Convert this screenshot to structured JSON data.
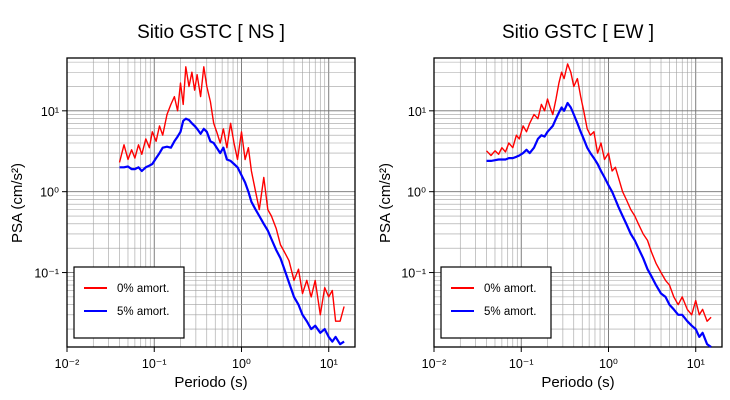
{
  "figure": {
    "panels": [
      {
        "title": "Sitio GSTC [ NS ]",
        "xlabel": "Periodo (s)",
        "ylabel": "PSA (cm/s²)",
        "legend": [
          "0% amort.",
          "5% amort."
        ]
      },
      {
        "title": "Sitio GSTC [ EW ]",
        "xlabel": "Periodo (s)",
        "ylabel": "PSA (cm/s²)",
        "legend": [
          "0% amort.",
          "5% amort."
        ]
      }
    ]
  },
  "colors": {
    "series_0": "#ff0000",
    "series_5": "#0000ff"
  },
  "chart_data": [
    {
      "type": "line",
      "title": "Sitio GSTC [ NS ]",
      "xlabel": "Periodo (s)",
      "ylabel": "PSA (cm/s²)",
      "xscale": "log",
      "yscale": "log",
      "xlim": [
        0.01,
        20
      ],
      "ylim": [
        0.012,
        45
      ],
      "xtick_labels": [
        "10⁻²",
        "10⁻¹",
        "10⁰",
        "10¹"
      ],
      "ytick_labels": [
        "10⁻¹",
        "10⁰",
        "10¹"
      ],
      "grid": true,
      "legend_position": "bottom-left",
      "series": [
        {
          "name": "0% amort.",
          "color": "#ff0000",
          "x": [
            0.04,
            0.045,
            0.05,
            0.055,
            0.06,
            0.066,
            0.072,
            0.08,
            0.088,
            0.095,
            0.105,
            0.115,
            0.125,
            0.14,
            0.155,
            0.17,
            0.185,
            0.2,
            0.215,
            0.23,
            0.25,
            0.27,
            0.29,
            0.31,
            0.34,
            0.37,
            0.4,
            0.44,
            0.48,
            0.52,
            0.57,
            0.62,
            0.68,
            0.75,
            0.82,
            0.9,
            1.0,
            1.1,
            1.2,
            1.3,
            1.45,
            1.6,
            1.8,
            2.0,
            2.2,
            2.5,
            2.8,
            3.1,
            3.5,
            4.0,
            4.5,
            5.0,
            5.6,
            6.3,
            7.0,
            8.0,
            9.0,
            10.0,
            11.0,
            12.0,
            13.5,
            15.0
          ],
          "y": [
            2.3,
            3.8,
            2.5,
            3.3,
            2.6,
            3.8,
            2.9,
            4.5,
            3.5,
            5.5,
            4.2,
            6.5,
            5.0,
            9.0,
            12.0,
            15.0,
            10.0,
            22.0,
            12.0,
            35.0,
            20.0,
            30.0,
            18.0,
            28.0,
            15.0,
            35.0,
            20.0,
            13.0,
            7.0,
            5.5,
            4.0,
            6.0,
            3.5,
            7.0,
            4.0,
            2.5,
            5.5,
            2.5,
            3.5,
            1.8,
            1.0,
            0.6,
            1.5,
            0.6,
            0.5,
            0.35,
            0.22,
            0.18,
            0.14,
            0.08,
            0.11,
            0.055,
            0.08,
            0.05,
            0.08,
            0.03,
            0.065,
            0.05,
            0.06,
            0.025,
            0.025,
            0.038
          ]
        },
        {
          "name": "5% amort.",
          "color": "#0000ff",
          "x": [
            0.04,
            0.045,
            0.05,
            0.055,
            0.06,
            0.066,
            0.072,
            0.08,
            0.088,
            0.095,
            0.105,
            0.115,
            0.125,
            0.14,
            0.155,
            0.17,
            0.185,
            0.2,
            0.215,
            0.23,
            0.25,
            0.27,
            0.29,
            0.31,
            0.34,
            0.37,
            0.4,
            0.44,
            0.48,
            0.52,
            0.57,
            0.62,
            0.68,
            0.75,
            0.82,
            0.9,
            1.0,
            1.1,
            1.2,
            1.3,
            1.45,
            1.6,
            1.8,
            2.0,
            2.2,
            2.5,
            2.8,
            3.1,
            3.5,
            4.0,
            4.5,
            5.0,
            5.6,
            6.3,
            7.0,
            8.0,
            9.0,
            10.0,
            11.0,
            12.0,
            13.5,
            15.0
          ],
          "y": [
            2.0,
            2.0,
            2.05,
            1.9,
            1.9,
            2.0,
            1.8,
            2.0,
            2.1,
            2.2,
            2.6,
            3.0,
            3.5,
            3.6,
            3.5,
            4.2,
            4.8,
            5.5,
            7.5,
            8.0,
            7.7,
            7.0,
            6.5,
            6.0,
            5.2,
            6.0,
            5.5,
            4.2,
            4.0,
            3.5,
            3.0,
            3.5,
            2.5,
            2.4,
            2.2,
            2.0,
            1.6,
            1.3,
            1.0,
            0.75,
            0.6,
            0.5,
            0.4,
            0.33,
            0.26,
            0.19,
            0.15,
            0.11,
            0.075,
            0.05,
            0.04,
            0.03,
            0.025,
            0.02,
            0.022,
            0.018,
            0.02,
            0.016,
            0.014,
            0.016,
            0.013,
            0.014
          ]
        }
      ]
    },
    {
      "type": "line",
      "title": "Sitio GSTC [ EW ]",
      "xlabel": "Periodo (s)",
      "ylabel": "PSA (cm/s²)",
      "xscale": "log",
      "yscale": "log",
      "xlim": [
        0.01,
        20
      ],
      "ylim": [
        0.012,
        45
      ],
      "xtick_labels": [
        "10⁻²",
        "10⁻¹",
        "10⁰",
        "10¹"
      ],
      "ytick_labels": [
        "10⁻¹",
        "10⁰",
        "10¹"
      ],
      "grid": true,
      "legend_position": "bottom-left",
      "series": [
        {
          "name": "0% amort.",
          "color": "#ff0000",
          "x": [
            0.04,
            0.045,
            0.05,
            0.055,
            0.06,
            0.066,
            0.072,
            0.08,
            0.088,
            0.095,
            0.105,
            0.115,
            0.125,
            0.14,
            0.155,
            0.17,
            0.185,
            0.2,
            0.215,
            0.23,
            0.25,
            0.27,
            0.29,
            0.31,
            0.34,
            0.37,
            0.4,
            0.44,
            0.48,
            0.52,
            0.57,
            0.62,
            0.68,
            0.75,
            0.82,
            0.9,
            1.0,
            1.1,
            1.2,
            1.3,
            1.45,
            1.6,
            1.8,
            2.0,
            2.2,
            2.5,
            2.8,
            3.1,
            3.5,
            4.0,
            4.5,
            5.0,
            5.6,
            6.3,
            7.0,
            8.0,
            9.0,
            10.0,
            11.0,
            12.0,
            13.5,
            15.0
          ],
          "y": [
            3.2,
            2.8,
            3.2,
            2.9,
            3.5,
            3.1,
            4.0,
            3.5,
            5.0,
            4.5,
            6.5,
            5.5,
            7.0,
            9.0,
            8.0,
            12.0,
            10.0,
            14.0,
            11.0,
            9.0,
            14.0,
            22.0,
            30.0,
            25.0,
            38.0,
            30.0,
            20.0,
            25.0,
            15.0,
            10.0,
            6.0,
            5.0,
            5.5,
            3.0,
            4.0,
            2.5,
            3.0,
            1.8,
            2.0,
            1.5,
            1.0,
            0.8,
            0.6,
            0.5,
            0.4,
            0.3,
            0.25,
            0.18,
            0.13,
            0.1,
            0.08,
            0.07,
            0.05,
            0.04,
            0.05,
            0.035,
            0.03,
            0.045,
            0.03,
            0.035,
            0.025,
            0.028
          ]
        },
        {
          "name": "5% amort.",
          "color": "#0000ff",
          "x": [
            0.04,
            0.045,
            0.05,
            0.055,
            0.06,
            0.066,
            0.072,
            0.08,
            0.088,
            0.095,
            0.105,
            0.115,
            0.125,
            0.14,
            0.155,
            0.17,
            0.185,
            0.2,
            0.215,
            0.23,
            0.25,
            0.27,
            0.29,
            0.31,
            0.34,
            0.37,
            0.4,
            0.44,
            0.48,
            0.52,
            0.57,
            0.62,
            0.68,
            0.75,
            0.82,
            0.9,
            1.0,
            1.1,
            1.2,
            1.3,
            1.45,
            1.6,
            1.8,
            2.0,
            2.2,
            2.5,
            2.8,
            3.1,
            3.5,
            4.0,
            4.5,
            5.0,
            5.6,
            6.3,
            7.0,
            8.0,
            9.0,
            10.0,
            11.0,
            12.0,
            13.5,
            15.0
          ],
          "y": [
            2.4,
            2.4,
            2.45,
            2.5,
            2.5,
            2.5,
            2.6,
            2.6,
            2.7,
            2.8,
            3.0,
            3.3,
            3.0,
            3.5,
            4.5,
            5.0,
            4.8,
            5.5,
            6.0,
            6.5,
            8.0,
            9.5,
            11.0,
            10.0,
            12.5,
            11.0,
            9.0,
            7.0,
            5.5,
            4.5,
            3.5,
            3.0,
            2.6,
            2.2,
            1.8,
            1.5,
            1.2,
            1.0,
            0.8,
            0.65,
            0.5,
            0.4,
            0.3,
            0.25,
            0.2,
            0.15,
            0.11,
            0.09,
            0.07,
            0.055,
            0.05,
            0.04,
            0.035,
            0.03,
            0.03,
            0.025,
            0.022,
            0.02,
            0.016,
            0.018,
            0.013,
            0.012
          ]
        }
      ]
    }
  ]
}
